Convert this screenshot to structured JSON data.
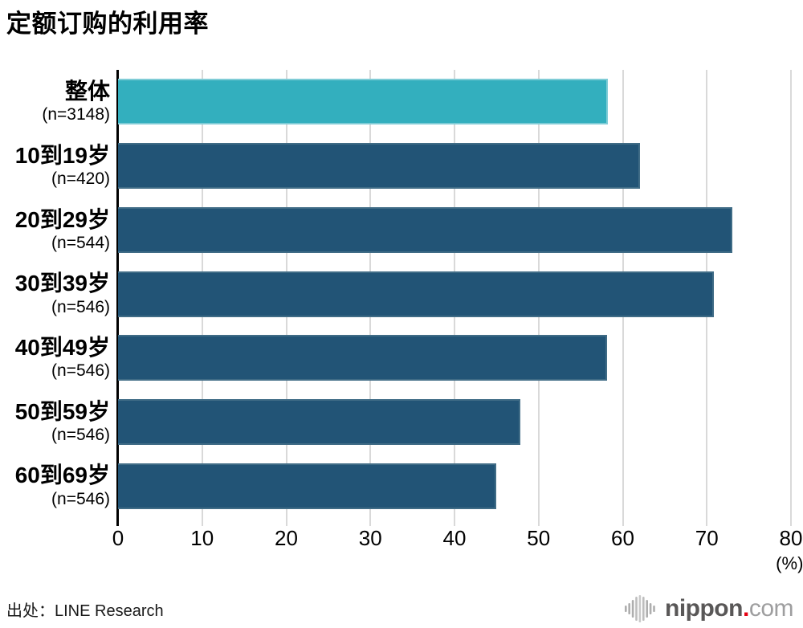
{
  "title": "定额订购的利用率",
  "chart_data": {
    "type": "bar",
    "orientation": "horizontal",
    "title": "定额订购的利用率",
    "categories": [
      "整体",
      "10到19岁",
      "20到29岁",
      "30到39岁",
      "40到49岁",
      "50到59岁",
      "60到69岁"
    ],
    "sample_labels": [
      "(n=3148)",
      "(n=420)",
      "(n=544)",
      "(n=546)",
      "(n=546)",
      "(n=546)",
      "(n=546)"
    ],
    "values": [
      58.2,
      62.1,
      73.0,
      70.8,
      58.1,
      47.8,
      45.0
    ],
    "xlim": [
      0,
      80
    ],
    "x_ticks": [
      0,
      10,
      20,
      30,
      40,
      50,
      60,
      70,
      80
    ],
    "x_unit": "(%)",
    "grid": true,
    "legend": "none",
    "colors": {
      "highlight": "#33afbe",
      "highlight_border": "#7fccd6",
      "default": "#225476",
      "default_border": "#406c86",
      "gridline": "#d9d9d9",
      "axis": "#000000"
    }
  },
  "footer": {
    "source": "出处：LINE Research",
    "logo": {
      "icon": "soundwave-bars-icon",
      "text_main": "nippon",
      "dot": ".",
      "text_suffix": "com",
      "color_main": "#595757",
      "color_dot": "#e60012",
      "color_suffix": "#9e9e9f"
    }
  }
}
